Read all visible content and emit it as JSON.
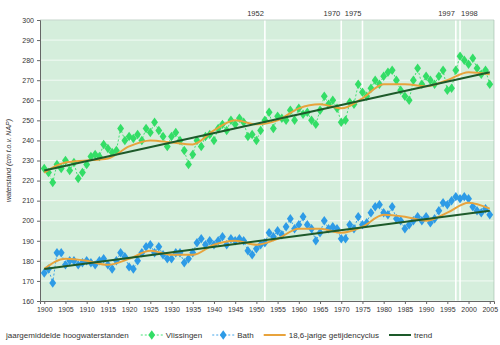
{
  "chart_data": {
    "type": "line",
    "y_label": "waterstand (cm t.o.v. NAP)",
    "legend_title": "jaargemiddelde hoogwaterstanden",
    "grid": true,
    "xlim": [
      1899,
      2006
    ],
    "xticks": [
      1900,
      1905,
      1910,
      1915,
      1920,
      1925,
      1930,
      1935,
      1940,
      1945,
      1950,
      1955,
      1960,
      1965,
      1970,
      1975,
      1980,
      1985,
      1990,
      1995,
      2000,
      2005
    ],
    "ylim": [
      160,
      300
    ],
    "yticks": [
      160,
      170,
      180,
      190,
      200,
      210,
      220,
      230,
      240,
      250,
      260,
      270,
      280,
      290,
      300
    ],
    "vlines": [
      1952,
      1970,
      1975,
      1997,
      1998
    ],
    "x": [
      1900,
      1901,
      1902,
      1903,
      1904,
      1905,
      1906,
      1907,
      1908,
      1909,
      1910,
      1911,
      1912,
      1913,
      1914,
      1915,
      1916,
      1917,
      1918,
      1919,
      1920,
      1921,
      1922,
      1923,
      1924,
      1925,
      1926,
      1927,
      1928,
      1929,
      1930,
      1931,
      1932,
      1933,
      1934,
      1935,
      1936,
      1937,
      1938,
      1939,
      1940,
      1941,
      1942,
      1943,
      1944,
      1945,
      1946,
      1947,
      1948,
      1949,
      1950,
      1951,
      1952,
      1953,
      1954,
      1955,
      1956,
      1957,
      1958,
      1959,
      1960,
      1961,
      1962,
      1963,
      1964,
      1965,
      1966,
      1967,
      1968,
      1969,
      1970,
      1971,
      1972,
      1973,
      1974,
      1975,
      1976,
      1977,
      1978,
      1979,
      1980,
      1981,
      1982,
      1983,
      1984,
      1985,
      1986,
      1987,
      1988,
      1989,
      1990,
      1991,
      1992,
      1993,
      1994,
      1995,
      1996,
      1997,
      1998,
      1999,
      2000,
      2001,
      2002,
      2003,
      2004,
      2005
    ],
    "series": [
      {
        "name": "Vlissingen",
        "color": "#33dd66",
        "marker": "diamond",
        "line_style": "dashed",
        "values": [
          226,
          224,
          219,
          228,
          226,
          230,
          225,
          229,
          221,
          224,
          228,
          232,
          233,
          232,
          238,
          236,
          234,
          235,
          246,
          240,
          242,
          241,
          243,
          240,
          246,
          244,
          249,
          245,
          242,
          237,
          242,
          244,
          240,
          235,
          228,
          233,
          240,
          237,
          242,
          243,
          240,
          246,
          248,
          245,
          250,
          248,
          251,
          249,
          242,
          243,
          240,
          245,
          250,
          254,
          246,
          252,
          251,
          250,
          255,
          250,
          256,
          253,
          254,
          250,
          248,
          255,
          262,
          258,
          260,
          256,
          249,
          250,
          259,
          258,
          268,
          264,
          262,
          266,
          270,
          268,
          272,
          274,
          275,
          270,
          265,
          262,
          260,
          270,
          276,
          268,
          272,
          270,
          268,
          272,
          275,
          265,
          266,
          275,
          282,
          280,
          278,
          281,
          276,
          273,
          275,
          268
        ]
      },
      {
        "name": "Bath",
        "color": "#2e9be6",
        "marker": "diamond",
        "line_style": "dashed",
        "values": [
          174,
          176,
          169,
          184,
          184,
          178,
          180,
          180,
          178,
          179,
          180,
          179,
          178,
          180,
          181,
          178,
          176,
          180,
          184,
          182,
          177,
          176,
          180,
          184,
          187,
          188,
          184,
          187,
          183,
          181,
          181,
          184,
          184,
          179,
          181,
          184,
          189,
          191,
          188,
          190,
          188,
          190,
          192,
          188,
          191,
          190,
          191,
          190,
          185,
          183,
          186,
          188,
          189,
          194,
          192,
          195,
          193,
          197,
          201,
          196,
          198,
          202,
          198,
          196,
          190,
          194,
          200,
          196,
          197,
          196,
          191,
          191,
          198,
          196,
          202,
          198,
          199,
          204,
          207,
          208,
          204,
          203,
          207,
          201,
          200,
          196,
          198,
          200,
          202,
          200,
          202,
          199,
          201,
          205,
          209,
          208,
          210,
          212,
          211,
          212,
          211,
          207,
          205,
          204,
          206,
          203
        ]
      },
      {
        "name": "18,6-jarige getijdencyclus",
        "color": "#e8a33c",
        "line_style": "solid",
        "x": [
          1900,
          1905,
          1910,
          1915,
          1920,
          1925,
          1930,
          1935,
          1940,
          1945,
          1950,
          1955,
          1960,
          1965,
          1970,
          1975,
          1980,
          1985,
          1990,
          1995,
          2000,
          2005
        ],
        "values": [
          224,
          229,
          230,
          231,
          237,
          240,
          239,
          238,
          245,
          250,
          248,
          250,
          256,
          258,
          256,
          261,
          268,
          268,
          267,
          270,
          274,
          273
        ]
      },
      {
        "color": "#e8a33c",
        "line_style": "solid",
        "x": [
          1900,
          1905,
          1910,
          1915,
          1920,
          1925,
          1930,
          1935,
          1940,
          1945,
          1950,
          1955,
          1960,
          1965,
          1970,
          1975,
          1980,
          1985,
          1990,
          1995,
          2000,
          2005
        ],
        "values": [
          176,
          181,
          180,
          178,
          181,
          185,
          183,
          183,
          188,
          190,
          188,
          191,
          196,
          196,
          194,
          197,
          203,
          202,
          200,
          204,
          209,
          206
        ]
      },
      {
        "name": "trend",
        "color": "#1d5a2a",
        "line_style": "solid",
        "x": [
          1900,
          2005
        ],
        "values": [
          225,
          274
        ]
      },
      {
        "color": "#1d5a2a",
        "line_style": "solid",
        "x": [
          1900,
          2005
        ],
        "values": [
          176,
          205
        ]
      }
    ]
  }
}
